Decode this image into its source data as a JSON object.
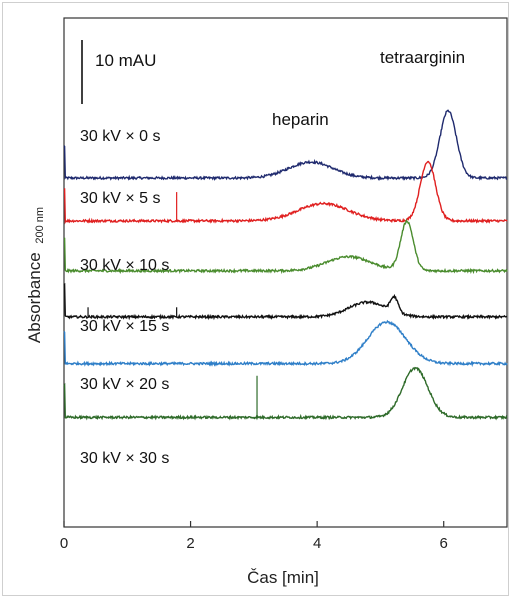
{
  "chart_data": {
    "type": "line",
    "xlabel": "Čas [min]",
    "ylabel": "Absorbance",
    "ylabel_sub": "200 nm",
    "xlim": [
      0,
      7
    ],
    "x_ticks": [
      "0",
      "2",
      "4",
      "6"
    ],
    "x_tick_values": [
      0,
      2,
      4,
      6
    ],
    "scale_bar_label": "10 mAU",
    "annotations": {
      "heparin": "heparin",
      "tetraarginin": "tetraarginin"
    },
    "series": [
      {
        "name": "30 kV × 0 s",
        "color": "#1f2a6e",
        "baseline_mAU": 0,
        "peaks": [
          {
            "x": 3.9,
            "height_mAU": 2.5,
            "width_min": 0.35
          },
          {
            "x": 6.07,
            "height_mAU": 10.5,
            "width_min": 0.13
          }
        ]
      },
      {
        "name": "30 kV × 5 s",
        "color": "#e02020",
        "baseline_mAU": -6.7,
        "peaks": [
          {
            "x": 4.1,
            "height_mAU": 2.7,
            "width_min": 0.4
          },
          {
            "x": 5.75,
            "height_mAU": 9.3,
            "width_min": 0.12
          }
        ]
      },
      {
        "name": "30 kV × 10 s",
        "color": "#4a8c2e",
        "baseline_mAU": -14.5,
        "peaks": [
          {
            "x": 4.5,
            "height_mAU": 2.2,
            "width_min": 0.35
          },
          {
            "x": 5.42,
            "height_mAU": 7.7,
            "width_min": 0.1
          }
        ]
      },
      {
        "name": "30 kV × 15 s",
        "color": "#111111",
        "baseline_mAU": -21.7,
        "peaks": [
          {
            "x": 4.8,
            "height_mAU": 2.3,
            "width_min": 0.3
          },
          {
            "x": 5.22,
            "height_mAU": 2.3,
            "width_min": 0.06
          }
        ]
      },
      {
        "name": "30 kV × 20 s",
        "color": "#2f7fc8",
        "baseline_mAU": -29,
        "peaks": [
          {
            "x": 5.1,
            "height_mAU": 6.5,
            "width_min": 0.3
          }
        ]
      },
      {
        "name": "30 kV × 30 s",
        "color": "#2f6b2a",
        "baseline_mAU": -37.4,
        "peaks": [
          {
            "x": 5.55,
            "height_mAU": 7.7,
            "width_min": 0.2
          }
        ]
      }
    ]
  }
}
